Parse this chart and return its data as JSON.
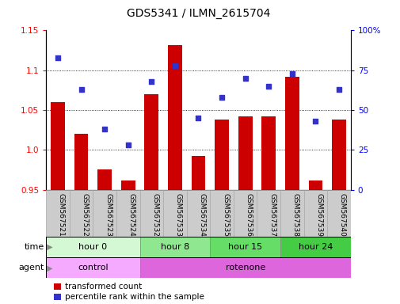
{
  "title": "GDS5341 / ILMN_2615704",
  "samples": [
    "GSM567521",
    "GSM567522",
    "GSM567523",
    "GSM567524",
    "GSM567532",
    "GSM567533",
    "GSM567534",
    "GSM567535",
    "GSM567536",
    "GSM567537",
    "GSM567538",
    "GSM567539",
    "GSM567540"
  ],
  "bar_values": [
    1.06,
    1.02,
    0.975,
    0.962,
    1.07,
    1.132,
    0.992,
    1.038,
    1.042,
    1.042,
    1.092,
    0.962,
    1.038
  ],
  "scatter_values": [
    83,
    63,
    38,
    28,
    68,
    78,
    45,
    58,
    70,
    65,
    73,
    43,
    63
  ],
  "ylim_left": [
    0.95,
    1.15
  ],
  "ylim_right": [
    0,
    100
  ],
  "yticks_left": [
    0.95,
    1.0,
    1.05,
    1.1,
    1.15
  ],
  "yticks_right": [
    0,
    25,
    50,
    75,
    100
  ],
  "ytick_labels_right": [
    "0",
    "25",
    "50",
    "75",
    "100%"
  ],
  "bar_color": "#CC0000",
  "scatter_color": "#3333CC",
  "bar_baseline": 0.95,
  "grid_yticks": [
    1.0,
    1.05,
    1.1
  ],
  "time_groups": [
    {
      "label": "hour 0",
      "start": 0,
      "end": 4,
      "color": "#d4f7d4"
    },
    {
      "label": "hour 8",
      "start": 4,
      "end": 7,
      "color": "#8fe88f"
    },
    {
      "label": "hour 15",
      "start": 7,
      "end": 10,
      "color": "#66dd66"
    },
    {
      "label": "hour 24",
      "start": 10,
      "end": 13,
      "color": "#44cc44"
    }
  ],
  "agent_groups": [
    {
      "label": "control",
      "start": 0,
      "end": 4,
      "color": "#f5aaff"
    },
    {
      "label": "rotenone",
      "start": 4,
      "end": 13,
      "color": "#dd66dd"
    }
  ],
  "legend_bar_label": "transformed count",
  "legend_scatter_label": "percentile rank within the sample",
  "time_label": "time",
  "agent_label": "agent",
  "label_cell_color": "#cccccc",
  "label_cell_edge": "#aaaaaa"
}
